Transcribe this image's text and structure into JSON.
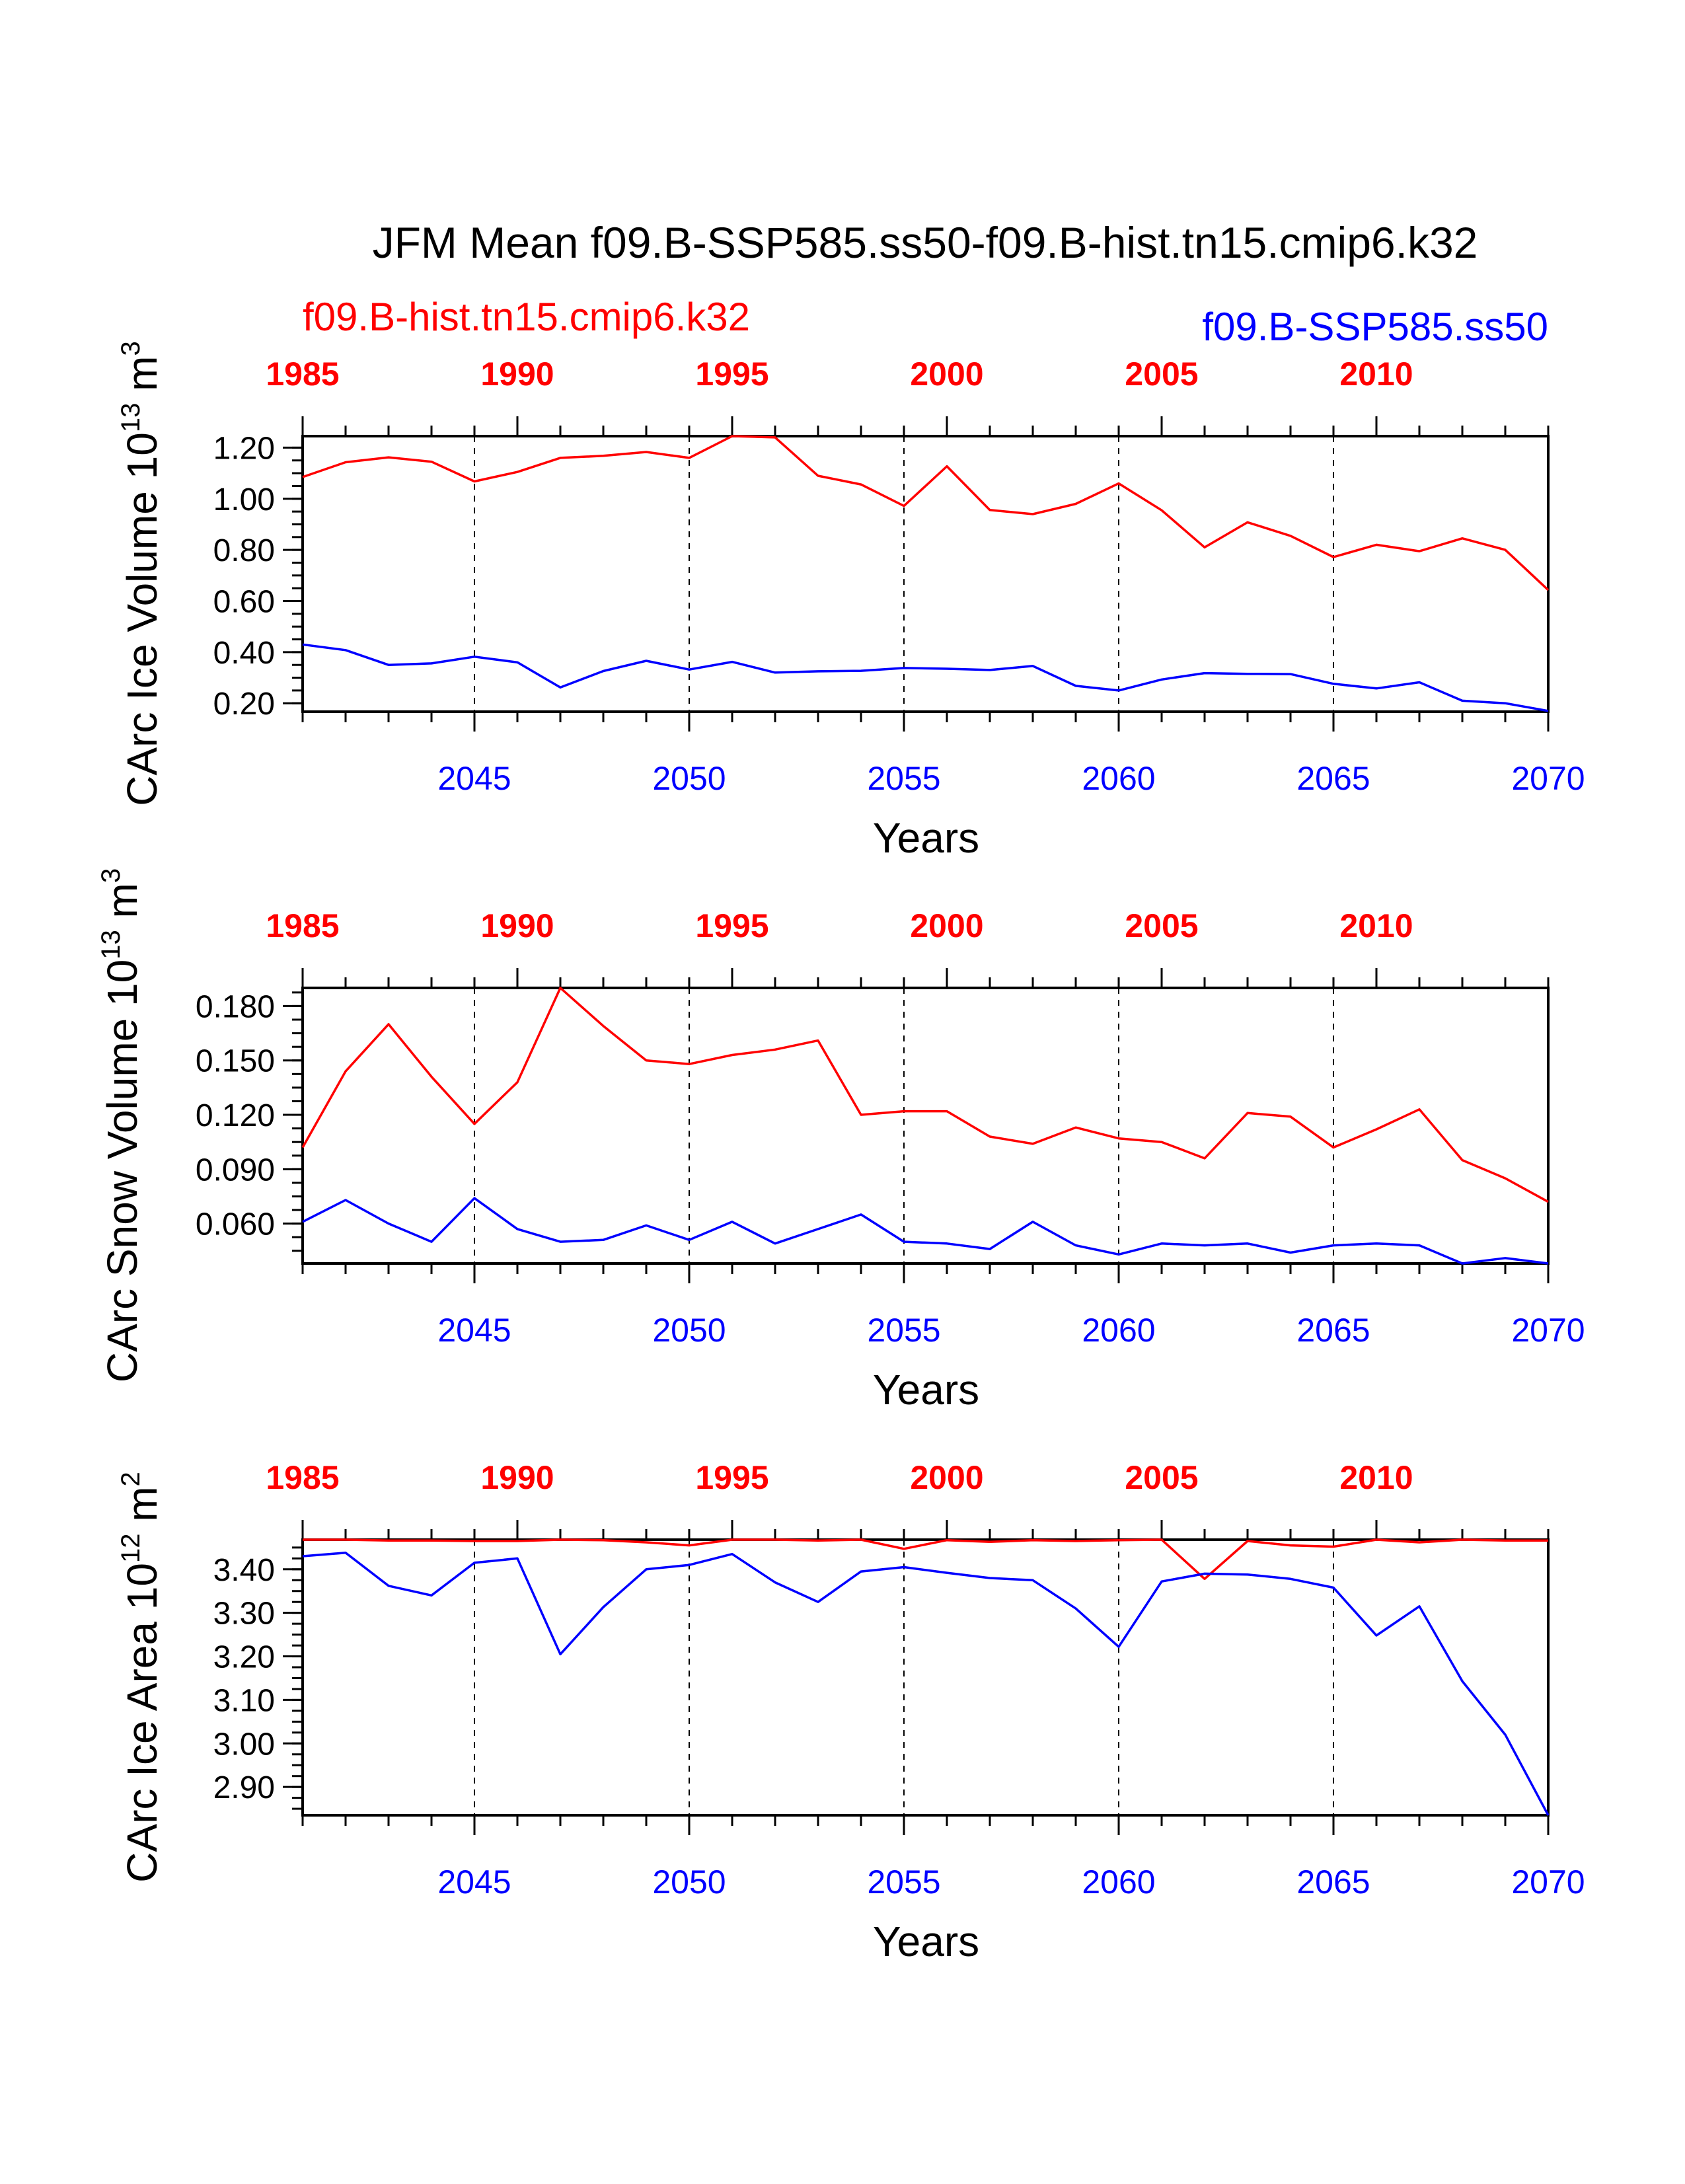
{
  "title": "JFM Mean f09.B-SSP585.ss50-f09.B-hist.tn15.cmip6.k32",
  "legend": {
    "hist": "f09.B-hist.tn15.cmip6.k32",
    "ssp": "f09.B-SSP585.ss50"
  },
  "colors": {
    "hist": "#ff0000",
    "ssp": "#0000ff",
    "frame": "#000000"
  },
  "top_axis_labels": [
    "1985",
    "1990",
    "1995",
    "2000",
    "2005",
    "2010"
  ],
  "bottom_axis_labels": [
    "2045",
    "2050",
    "2055",
    "2060",
    "2065",
    "2070"
  ],
  "xlabel": "Years",
  "chart_data": [
    {
      "type": "line",
      "ylabel": "CArc Ice Volume",
      "ylabel_exp": "10",
      "ylabel_pow": "13",
      "ylabel_unit": "m",
      "ylabel_unit_pow": "3",
      "x_ssp": [
        2041,
        2042,
        2043,
        2044,
        2045,
        2046,
        2047,
        2048,
        2049,
        2050,
        2051,
        2052,
        2053,
        2054,
        2055,
        2056,
        2057,
        2058,
        2059,
        2060,
        2061,
        2062,
        2063,
        2064,
        2065,
        2066,
        2067,
        2068,
        2069,
        2070
      ],
      "x_hist": [
        1985,
        1986,
        1987,
        1988,
        1989,
        1990,
        1991,
        1992,
        1993,
        1994,
        1995,
        1996,
        1997,
        1998,
        1999,
        2000,
        2001,
        2002,
        2003,
        2004,
        2005,
        2006,
        2007,
        2008,
        2009,
        2010,
        2011,
        2012,
        2013,
        2014
      ],
      "x_range_ssp": [
        2041,
        2070
      ],
      "x_range_hist": [
        1985,
        2014
      ],
      "ylim": [
        0.167,
        1.245
      ],
      "yticks": [
        0.2,
        0.4,
        0.6,
        0.8,
        1.0,
        1.2
      ],
      "ytick_labels": [
        "0.20",
        "0.40",
        "0.60",
        "0.80",
        "1.00",
        "1.20"
      ],
      "grid_years_ssp": [
        2045,
        2050,
        2055,
        2060,
        2065
      ],
      "series": [
        {
          "key": "hist",
          "values": [
            1.085,
            1.143,
            1.162,
            1.145,
            1.068,
            1.105,
            1.16,
            1.168,
            1.183,
            1.16,
            1.245,
            1.24,
            1.09,
            1.056,
            0.972,
            1.127,
            0.956,
            0.94,
            0.98,
            1.06,
            0.955,
            0.81,
            0.908,
            0.855,
            0.772,
            0.82,
            0.795,
            0.845,
            0.8,
            0.643
          ]
        },
        {
          "key": "ssp",
          "values": [
            0.43,
            0.408,
            0.35,
            0.356,
            0.382,
            0.36,
            0.262,
            0.326,
            0.366,
            0.332,
            0.362,
            0.32,
            0.325,
            0.327,
            0.338,
            0.335,
            0.33,
            0.346,
            0.268,
            0.25,
            0.293,
            0.318,
            0.315,
            0.314,
            0.276,
            0.258,
            0.282,
            0.21,
            0.2,
            0.17
          ]
        }
      ]
    },
    {
      "type": "line",
      "ylabel": "CArc Snow Volume",
      "ylabel_exp": "10",
      "ylabel_pow": "13",
      "ylabel_unit": "m",
      "ylabel_unit_pow": "3",
      "x_ssp": [
        2041,
        2042,
        2043,
        2044,
        2045,
        2046,
        2047,
        2048,
        2049,
        2050,
        2051,
        2052,
        2053,
        2054,
        2055,
        2056,
        2057,
        2058,
        2059,
        2060,
        2061,
        2062,
        2063,
        2064,
        2065,
        2066,
        2067,
        2068,
        2069,
        2070
      ],
      "x_hist": [
        1985,
        1986,
        1987,
        1988,
        1989,
        1990,
        1991,
        1992,
        1993,
        1994,
        1995,
        1996,
        1997,
        1998,
        1999,
        2000,
        2001,
        2002,
        2003,
        2004,
        2005,
        2006,
        2007,
        2008,
        2009,
        2010,
        2011,
        2012,
        2013,
        2014
      ],
      "x_range_ssp": [
        2041,
        2070
      ],
      "x_range_hist": [
        1985,
        2014
      ],
      "ylim": [
        0.038,
        0.19
      ],
      "yticks": [
        0.06,
        0.09,
        0.12,
        0.15,
        0.18
      ],
      "ytick_labels": [
        "0.060",
        "0.090",
        "0.120",
        "0.150",
        "0.180"
      ],
      "grid_years_ssp": [
        2045,
        2050,
        2055,
        2060,
        2065
      ],
      "series": [
        {
          "key": "hist",
          "values": [
            0.102,
            0.144,
            0.17,
            0.141,
            0.115,
            0.138,
            0.19,
            0.169,
            0.15,
            0.148,
            0.153,
            0.156,
            0.161,
            0.12,
            0.122,
            0.122,
            0.108,
            0.104,
            0.113,
            0.107,
            0.105,
            0.096,
            0.121,
            0.119,
            0.102,
            0.112,
            0.123,
            0.095,
            0.085,
            0.072
          ]
        },
        {
          "key": "ssp",
          "values": [
            0.061,
            0.073,
            0.06,
            0.05,
            0.074,
            0.057,
            0.05,
            0.051,
            0.059,
            0.051,
            0.061,
            0.049,
            0.057,
            0.065,
            0.05,
            0.049,
            0.046,
            0.061,
            0.048,
            0.043,
            0.049,
            0.048,
            0.049,
            0.044,
            0.048,
            0.049,
            0.048,
            0.038,
            0.041,
            0.038
          ]
        }
      ]
    },
    {
      "type": "line",
      "ylabel": "CArc Ice Area",
      "ylabel_exp": "10",
      "ylabel_pow": "12",
      "ylabel_unit": "m",
      "ylabel_unit_pow": "2",
      "x_ssp": [
        2041,
        2042,
        2043,
        2044,
        2045,
        2046,
        2047,
        2048,
        2049,
        2050,
        2051,
        2052,
        2053,
        2054,
        2055,
        2056,
        2057,
        2058,
        2059,
        2060,
        2061,
        2062,
        2063,
        2064,
        2065,
        2066,
        2067,
        2068,
        2069,
        2070
      ],
      "x_hist": [
        1985,
        1986,
        1987,
        1988,
        1989,
        1990,
        1991,
        1992,
        1993,
        1994,
        1995,
        1996,
        1997,
        1998,
        1999,
        2000,
        2001,
        2002,
        2003,
        2004,
        2005,
        2006,
        2007,
        2008,
        2009,
        2010,
        2011,
        2012,
        2013,
        2014
      ],
      "x_range_ssp": [
        2041,
        2070
      ],
      "x_range_hist": [
        1985,
        2014
      ],
      "ylim": [
        2.835,
        3.468
      ],
      "yticks": [
        2.9,
        3.0,
        3.1,
        3.2,
        3.3,
        3.4
      ],
      "ytick_labels": [
        "2.90",
        "3.00",
        "3.10",
        "3.20",
        "3.30",
        "3.40"
      ],
      "grid_years_ssp": [
        2045,
        2050,
        2055,
        2060,
        2065
      ],
      "series": [
        {
          "key": "hist",
          "values": [
            3.468,
            3.468,
            3.466,
            3.466,
            3.465,
            3.465,
            3.468,
            3.467,
            3.462,
            3.455,
            3.468,
            3.468,
            3.466,
            3.468,
            3.447,
            3.467,
            3.463,
            3.467,
            3.465,
            3.467,
            3.468,
            3.378,
            3.465,
            3.455,
            3.452,
            3.468,
            3.462,
            3.468,
            3.466,
            3.466
          ]
        },
        {
          "key": "ssp",
          "values": [
            3.43,
            3.438,
            3.362,
            3.34,
            3.415,
            3.425,
            3.205,
            3.313,
            3.4,
            3.41,
            3.435,
            3.37,
            3.325,
            3.395,
            3.405,
            3.392,
            3.38,
            3.375,
            3.31,
            3.222,
            3.372,
            3.39,
            3.388,
            3.378,
            3.358,
            3.248,
            3.315,
            3.143,
            3.02,
            2.835
          ]
        }
      ]
    }
  ]
}
